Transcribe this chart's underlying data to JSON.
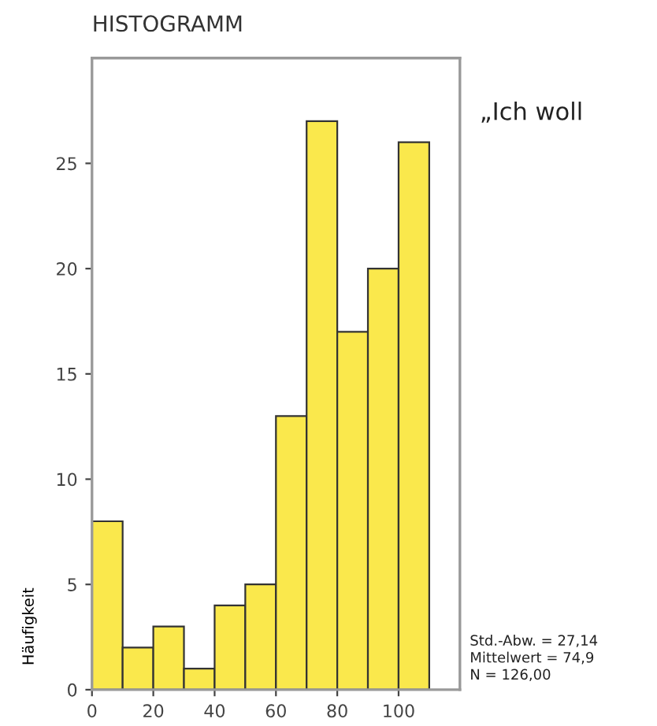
{
  "chart_data": {
    "type": "histogram",
    "title": "HISTOGRAMM",
    "ylabel": "Häufigkeit",
    "bins": [
      0,
      10,
      20,
      30,
      40,
      50,
      60,
      70,
      80,
      90,
      100,
      110
    ],
    "values": [
      8,
      2,
      3,
      1,
      4,
      5,
      13,
      27,
      17,
      20,
      26
    ],
    "color": "#fae84c",
    "xlim": [
      0,
      120
    ],
    "ylim": [
      0,
      30
    ],
    "xticks": [
      0,
      20,
      40,
      60,
      80,
      100
    ],
    "yticks": [
      0,
      5,
      10,
      15,
      20,
      25
    ],
    "grid": false,
    "annotations": [
      "„Ich woll",
      "Std.-Abw. = 27,14\nMittelwert = 74,9\nN = 126,00"
    ]
  }
}
